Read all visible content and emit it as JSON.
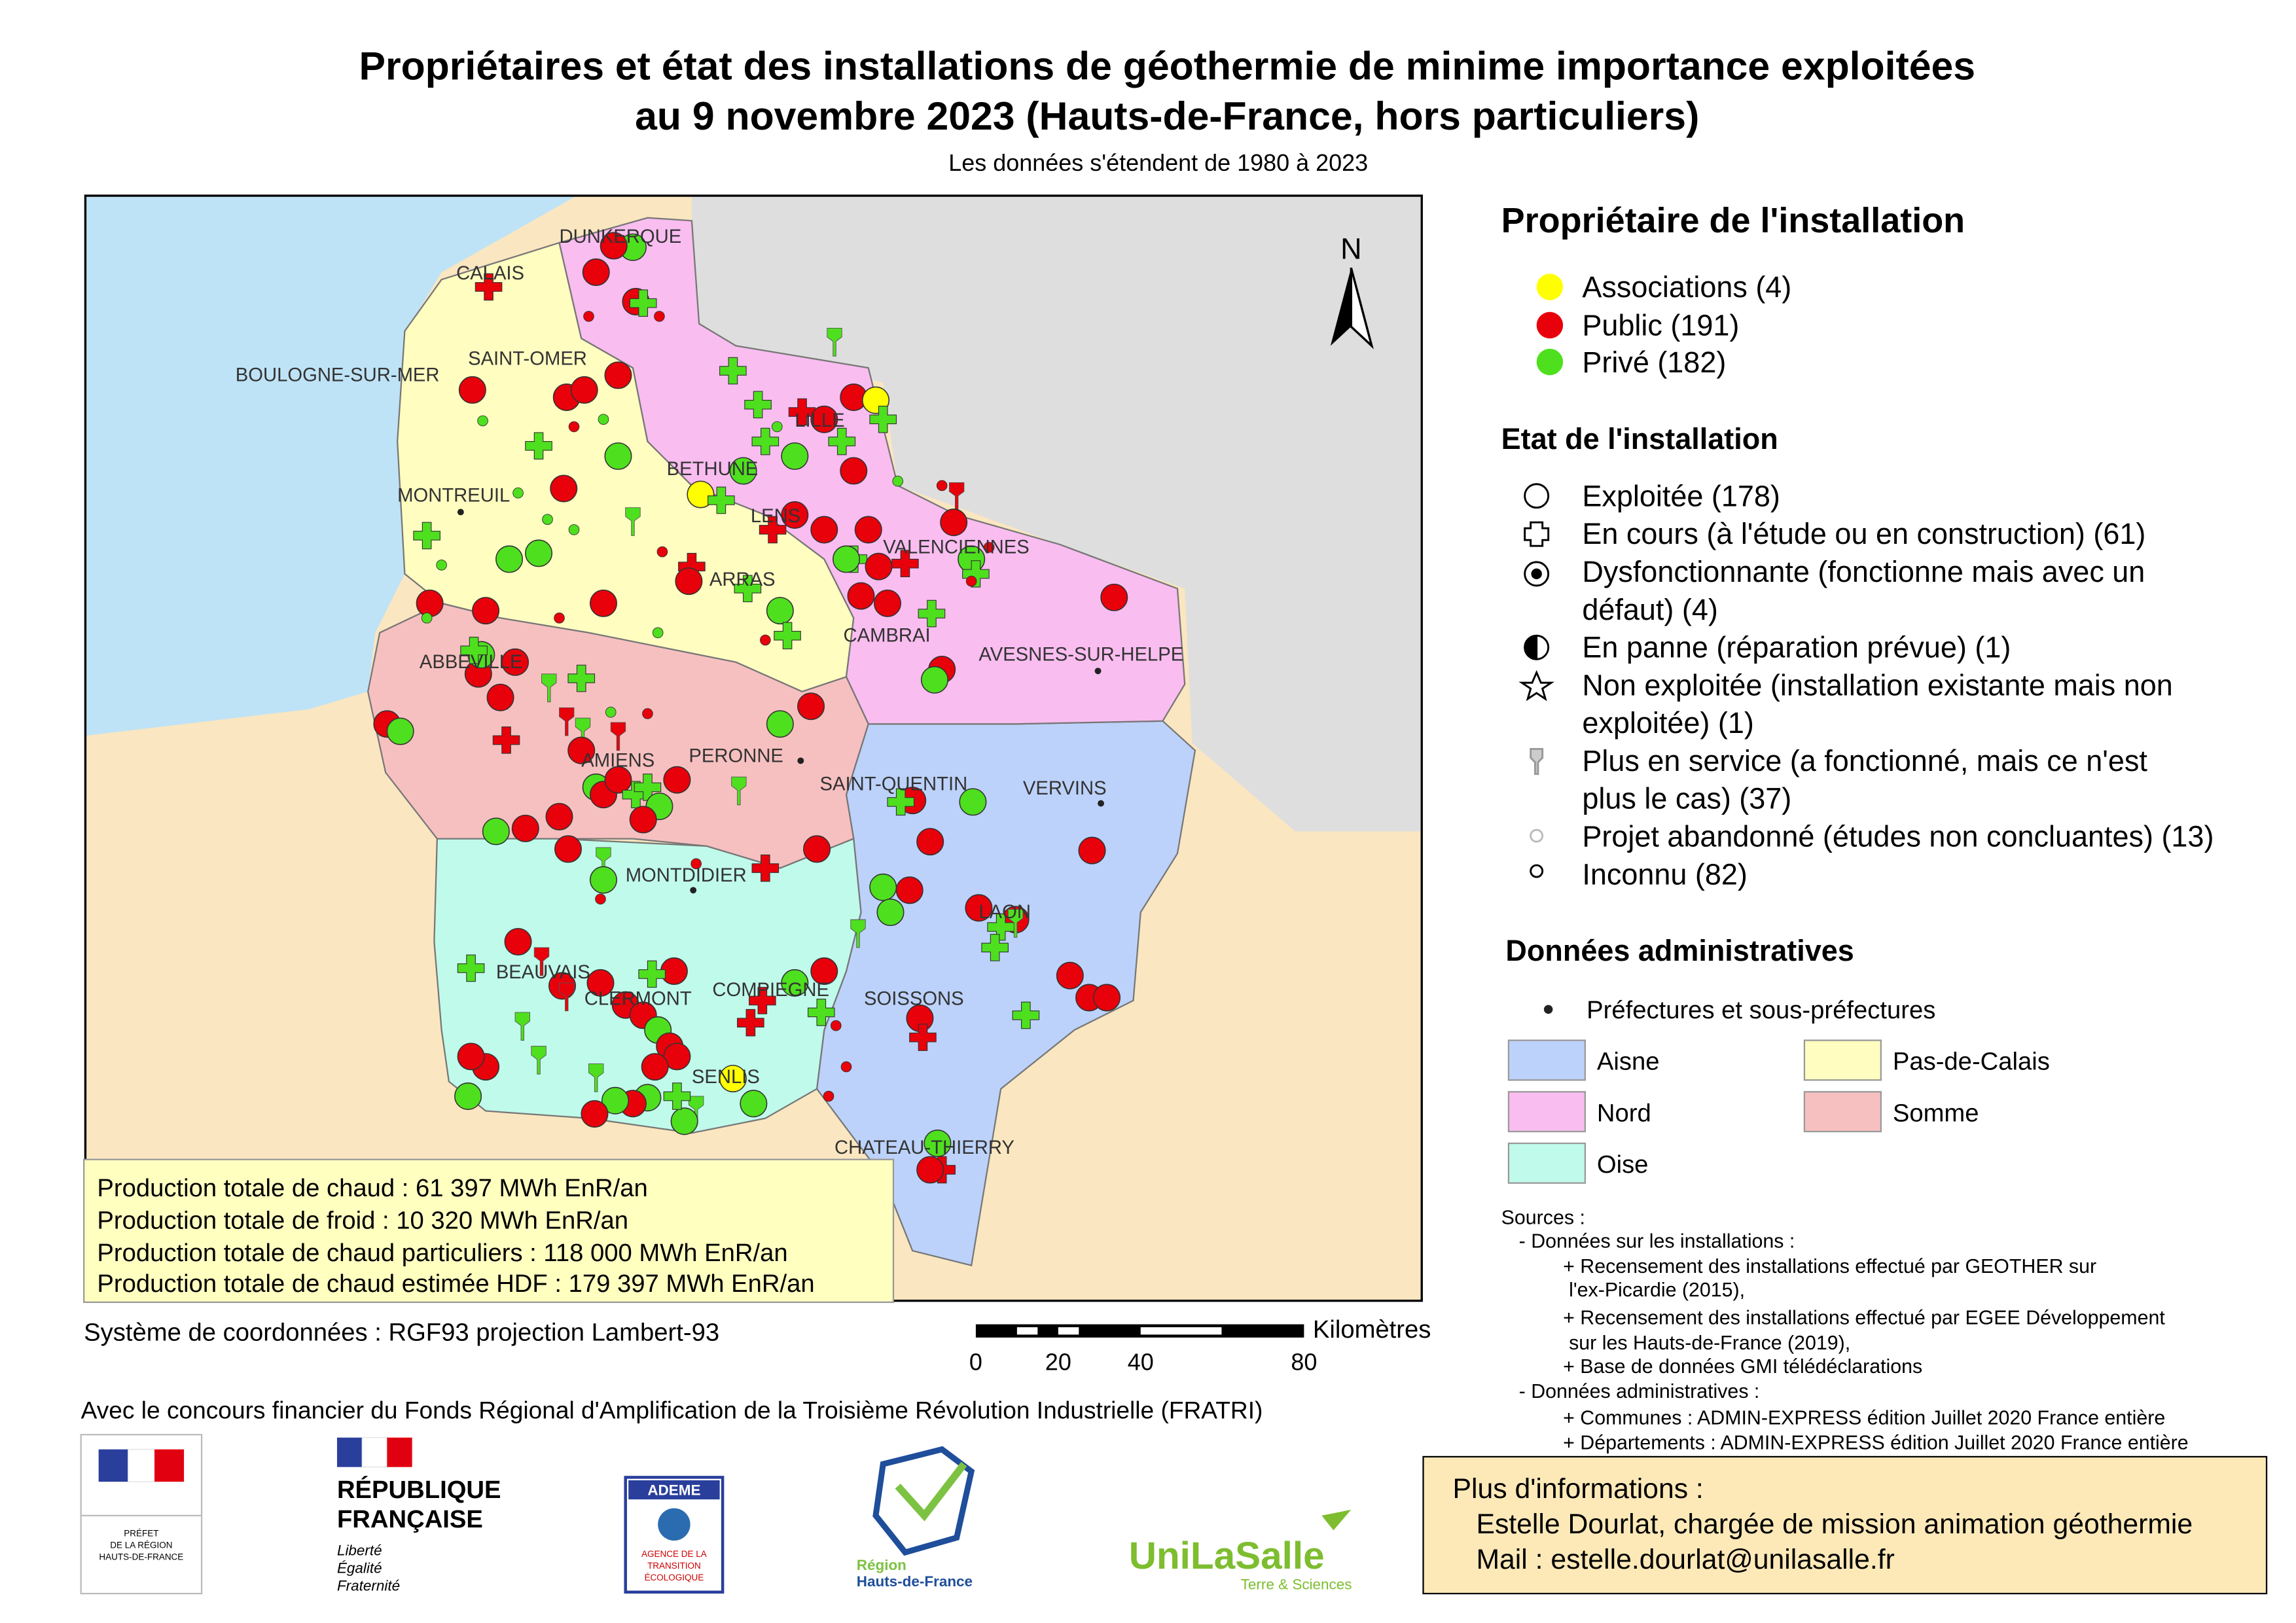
{
  "title": [
    "Propriétaires et état des installations de géothermie de minime importance exploitées",
    "au 9 novembre 2023 (Hauts-de-France, hors particuliers)"
  ],
  "subtitle": "Les données s'étendent de 1980 à 2023",
  "map": {
    "north": "N",
    "cities": [
      "DUNKERQUE",
      "CALAIS",
      "SAINT-OMER",
      "BOULOGNE-SUR-MER",
      "MONTREUIL",
      "BETHUNE",
      "LILLE",
      "LENS",
      "VALENCIENNES",
      "ARRAS",
      "CAMBRAI",
      "AVESNES-SUR-HELPE",
      "ABBEVILLE",
      "AMIENS",
      "PERONNE",
      "SAINT-QUENTIN",
      "VERVINS",
      "MONTDIDIER",
      "LAON",
      "BEAUVAIS",
      "CLERMONT",
      "COMPIEGNE",
      "SOISSONS",
      "SENLIS",
      "CHATEAU-THIERRY"
    ]
  },
  "legend": {
    "owner": {
      "title": "Propriétaire de l'installation",
      "items": [
        {
          "label": "Associations (4)",
          "color": "#ffff00"
        },
        {
          "label": "Public (191)",
          "color": "#e8000b"
        },
        {
          "label": "Privé (182)",
          "color": "#4ee01e"
        }
      ]
    },
    "state": {
      "title": "Etat de l'installation",
      "items": [
        [
          "Exploitée (178)"
        ],
        [
          "En cours (à l'étude ou en construction) (61)"
        ],
        [
          "Dysfonctionnante (fonctionne mais avec un",
          "défaut) (4)"
        ],
        [
          "En panne (réparation prévue) (1)"
        ],
        [
          "Non exploitée (installation existante mais non",
          "exploitée) (1)"
        ],
        [
          "Plus en service (a fonctionné, mais ce n'est",
          "plus le cas) (37)"
        ],
        [
          "Projet abandonné (études non concluantes) (13)"
        ],
        [
          "Inconnu (82)"
        ]
      ]
    },
    "admin": {
      "title": "Données administratives",
      "prefectures": "Préfectures et sous-préfectures",
      "departments": [
        {
          "name": "Aisne",
          "color": "#bcd2fa"
        },
        {
          "name": "Pas-de-Calais",
          "color": "#fffdc0"
        },
        {
          "name": "Nord",
          "color": "#f9bdf0"
        },
        {
          "name": "Somme",
          "color": "#f7c0c0"
        },
        {
          "name": "Oise",
          "color": "#c0faea"
        }
      ]
    }
  },
  "production": [
    "Production totale de chaud : 61 397 MWh EnR/an",
    "Production totale de froid : 10 320 MWh EnR/an",
    "Production totale de chaud particuliers : 118 000 MWh EnR/an",
    "Production totale de chaud estimée HDF : 179 397 MWh EnR/an"
  ],
  "coordinates": "Système de coordonnées : RGF93 projection Lambert-93",
  "scale": {
    "unit": "Kilomètres",
    "labels": [
      "0",
      "20",
      "40",
      "80"
    ]
  },
  "funding": "Avec le concours financier du Fonds Régional d'Amplification de la Troisième Révolution Industrielle (FRATRI)",
  "logos": {
    "prefet": [
      "PRÉFET",
      "DE LA RÉGION",
      "HAUTS-DE-FRANCE"
    ],
    "republique": [
      "RÉPUBLIQUE",
      "FRANÇAISE"
    ],
    "devise": [
      "Liberté",
      "Égalité",
      "Fraternité"
    ],
    "ademe": [
      "ADEME",
      "AGENCE DE LA",
      "TRANSITION",
      "ÉCOLOGIQUE"
    ],
    "region": [
      "Région",
      "Hauts-de-France"
    ],
    "unilasalle": [
      "UniLaSalle",
      "Terre & Sciences"
    ]
  },
  "sources": [
    "Sources :",
    "- Données sur les installations :",
    "+ Recensement des installations effectué par GEOTHER sur",
    "l'ex-Picardie (2015),",
    "+ Recensement des installations effectué par EGEE Développement",
    "sur les Hauts-de-France (2019),",
    "+ Base de données GMI télédéclarations",
    "- Données administratives :",
    "+ Communes : ADMIN-EXPRESS édition Juillet 2020 France entière",
    "+ Départements : ADMIN-EXPRESS édition Juillet 2020 France entière"
  ],
  "contact": [
    "Plus d'informations :",
    "Estelle Dourlat, chargée de mission animation géothermie",
    "Mail : estelle.dourlat@unilasalle.fr"
  ]
}
